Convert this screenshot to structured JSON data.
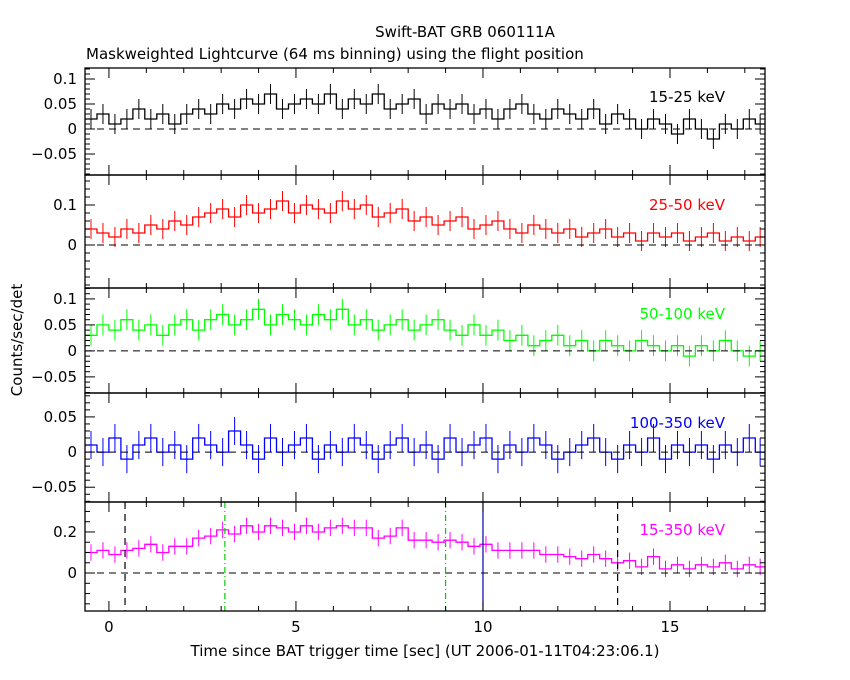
{
  "chart_data": {
    "type": "line",
    "title": "Swift-BAT GRB 060111A",
    "subtitle": "Maskweighted Lightcurve (64 ms binning) using the flight position",
    "xlabel": "Time since BAT trigger time [sec] (UT 2006-01-11T04:23:06.1)",
    "ylabel": "Counts/sec/det",
    "xlim": [
      -0.64,
      17.54
    ],
    "x_ticks": [
      "0",
      "5",
      "10",
      "15"
    ],
    "x_tick_values": [
      0,
      5,
      10,
      15
    ],
    "x_start": -0.64,
    "x_step": 0.32,
    "grid": false,
    "vertical_markers": [
      {
        "t": 0.43,
        "style": "dashed",
        "color": "#000000"
      },
      {
        "t": 3.1,
        "style": "dashdot",
        "color": "#00cc00"
      },
      {
        "t": 9.0,
        "style": "dashdot",
        "color": "#00cc00"
      },
      {
        "t": 10.0,
        "style": "solid",
        "color": "#0000aa"
      },
      {
        "t": 13.6,
        "style": "dashed",
        "color": "#000000"
      }
    ],
    "panels": [
      {
        "name": "15-25 keV",
        "color": "#000000",
        "ylim": [
          -0.092,
          0.122
        ],
        "y_ticks": [
          0.1,
          0.05,
          0,
          -0.05
        ],
        "y_tick_labels": [
          "0.1",
          "0.05",
          "0",
          "−0.05"
        ],
        "error": 0.02,
        "values": [
          0.02,
          0.03,
          0.01,
          0.02,
          0.04,
          0.02,
          0.03,
          0.01,
          0.03,
          0.04,
          0.03,
          0.05,
          0.04,
          0.06,
          0.05,
          0.07,
          0.04,
          0.05,
          0.06,
          0.05,
          0.07,
          0.04,
          0.06,
          0.05,
          0.07,
          0.04,
          0.05,
          0.06,
          0.03,
          0.05,
          0.04,
          0.05,
          0.03,
          0.04,
          0.02,
          0.04,
          0.05,
          0.03,
          0.02,
          0.04,
          0.03,
          0.02,
          0.04,
          0.01,
          0.03,
          0.02,
          0.0,
          0.02,
          0.01,
          -0.01,
          0.02,
          0.0,
          -0.02,
          0.01,
          0.0,
          0.02,
          0.01
        ]
      },
      {
        "name": "25-50 keV",
        "color": "#ff0000",
        "ylim": [
          -0.1075,
          0.175
        ],
        "y_ticks": [
          0.1,
          0
        ],
        "y_tick_labels": [
          "0.1",
          "0"
        ],
        "error": 0.025,
        "values": [
          0.04,
          0.03,
          0.02,
          0.04,
          0.03,
          0.05,
          0.04,
          0.06,
          0.05,
          0.07,
          0.08,
          0.09,
          0.07,
          0.1,
          0.08,
          0.09,
          0.11,
          0.08,
          0.1,
          0.09,
          0.08,
          0.11,
          0.09,
          0.1,
          0.07,
          0.08,
          0.09,
          0.06,
          0.07,
          0.05,
          0.06,
          0.07,
          0.04,
          0.05,
          0.06,
          0.04,
          0.03,
          0.05,
          0.04,
          0.03,
          0.04,
          0.02,
          0.03,
          0.04,
          0.02,
          0.03,
          0.01,
          0.03,
          0.02,
          0.03,
          0.01,
          0.02,
          0.03,
          0.01,
          0.02,
          0.01,
          0.02
        ]
      },
      {
        "name": "50-100 keV",
        "color": "#00ff00",
        "ylim": [
          -0.081,
          0.121
        ],
        "y_ticks": [
          0.1,
          0.05,
          0,
          -0.05
        ],
        "y_tick_labels": [
          "0.1",
          "0.05",
          "0",
          "−0.05"
        ],
        "error": 0.02,
        "values": [
          0.03,
          0.05,
          0.04,
          0.06,
          0.04,
          0.05,
          0.03,
          0.05,
          0.06,
          0.04,
          0.06,
          0.07,
          0.05,
          0.06,
          0.08,
          0.05,
          0.07,
          0.06,
          0.05,
          0.07,
          0.06,
          0.08,
          0.05,
          0.06,
          0.04,
          0.05,
          0.06,
          0.04,
          0.05,
          0.06,
          0.04,
          0.03,
          0.05,
          0.03,
          0.04,
          0.02,
          0.03,
          0.01,
          0.02,
          0.03,
          0.01,
          0.02,
          0.0,
          0.02,
          0.01,
          0.0,
          0.02,
          0.01,
          0.0,
          0.01,
          -0.01,
          0.01,
          0.0,
          0.02,
          0.0,
          -0.01,
          0.0
        ]
      },
      {
        "name": "100-350 keV",
        "color": "#0000ff",
        "ylim": [
          -0.071,
          0.084
        ],
        "y_ticks": [
          0.05,
          0,
          -0.05
        ],
        "y_tick_labels": [
          "0.05",
          "0",
          "−0.05"
        ],
        "error": 0.02,
        "values": [
          0.01,
          0.0,
          0.02,
          -0.01,
          0.01,
          0.02,
          0.0,
          0.01,
          -0.01,
          0.02,
          0.01,
          0.0,
          0.03,
          0.01,
          -0.01,
          0.02,
          0.0,
          0.01,
          0.02,
          -0.01,
          0.01,
          0.0,
          0.02,
          0.01,
          -0.01,
          0.01,
          0.02,
          0.0,
          0.01,
          -0.01,
          0.02,
          0.0,
          0.01,
          0.02,
          -0.01,
          0.01,
          0.0,
          0.02,
          0.01,
          -0.01,
          0.0,
          0.01,
          0.02,
          0.0,
          -0.01,
          0.01,
          0.0,
          0.02,
          -0.01,
          0.01,
          0.0,
          0.01,
          -0.01,
          0.01,
          0.0,
          0.02,
          0.0
        ]
      },
      {
        "name": "15-350 keV",
        "color": "#ff00ff",
        "ylim": [
          -0.185,
          0.346
        ],
        "y_ticks": [
          0.2,
          0
        ],
        "y_tick_labels": [
          "0.2",
          "0"
        ],
        "error": 0.04,
        "values": [
          0.1,
          0.11,
          0.09,
          0.11,
          0.12,
          0.14,
          0.1,
          0.13,
          0.13,
          0.17,
          0.18,
          0.21,
          0.19,
          0.23,
          0.2,
          0.23,
          0.22,
          0.2,
          0.23,
          0.2,
          0.22,
          0.23,
          0.22,
          0.22,
          0.17,
          0.18,
          0.22,
          0.16,
          0.16,
          0.15,
          0.16,
          0.15,
          0.13,
          0.14,
          0.11,
          0.11,
          0.11,
          0.11,
          0.09,
          0.09,
          0.08,
          0.07,
          0.09,
          0.07,
          0.05,
          0.06,
          0.03,
          0.08,
          0.02,
          0.04,
          0.02,
          0.04,
          0.03,
          0.05,
          0.02,
          0.04,
          0.03
        ]
      }
    ]
  }
}
